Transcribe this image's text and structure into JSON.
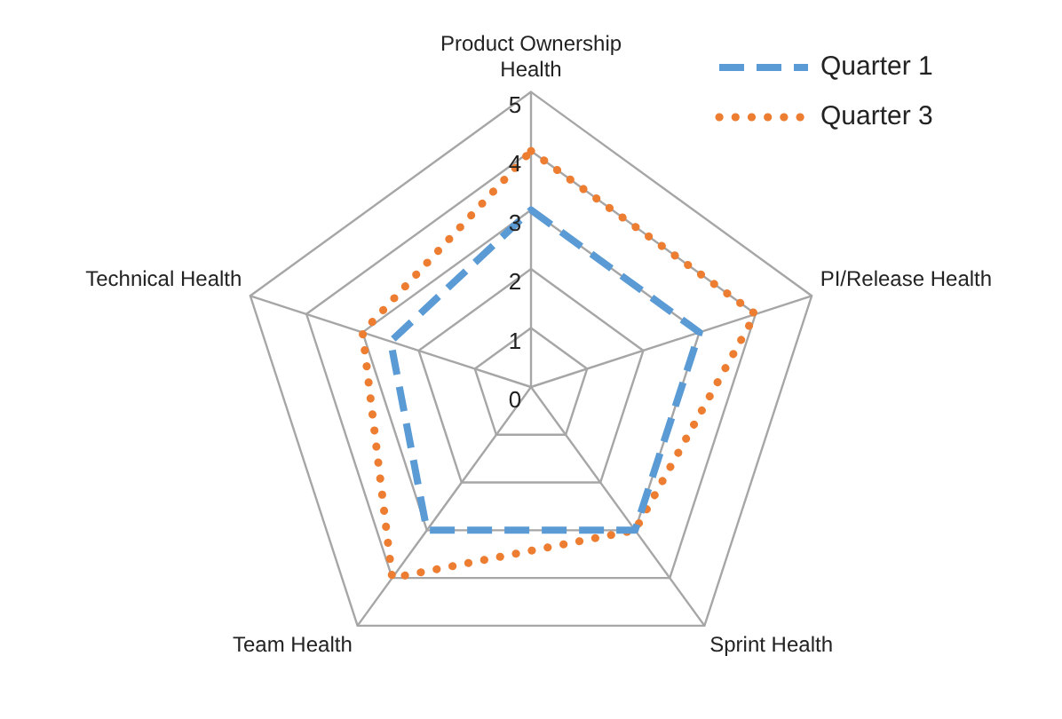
{
  "chart_data": {
    "type": "radar",
    "categories": [
      "Product Ownership Health",
      "PI/Release Health",
      "Sprint Health",
      "Team Health",
      "Technical Health"
    ],
    "series": [
      {
        "name": "Quarter 1",
        "color": "#5b9bd5",
        "line_style": "dashed",
        "values": [
          3,
          3,
          3,
          3,
          2.5
        ]
      },
      {
        "name": "Quarter 3",
        "color": "#ed7d31",
        "line_style": "dotted",
        "values": [
          4,
          4,
          3,
          4,
          3
        ]
      }
    ],
    "ylim": [
      0,
      5
    ],
    "yticks": [
      0,
      1,
      2,
      3,
      4,
      5
    ],
    "grid": true,
    "legend": "top right",
    "marker": "none"
  }
}
